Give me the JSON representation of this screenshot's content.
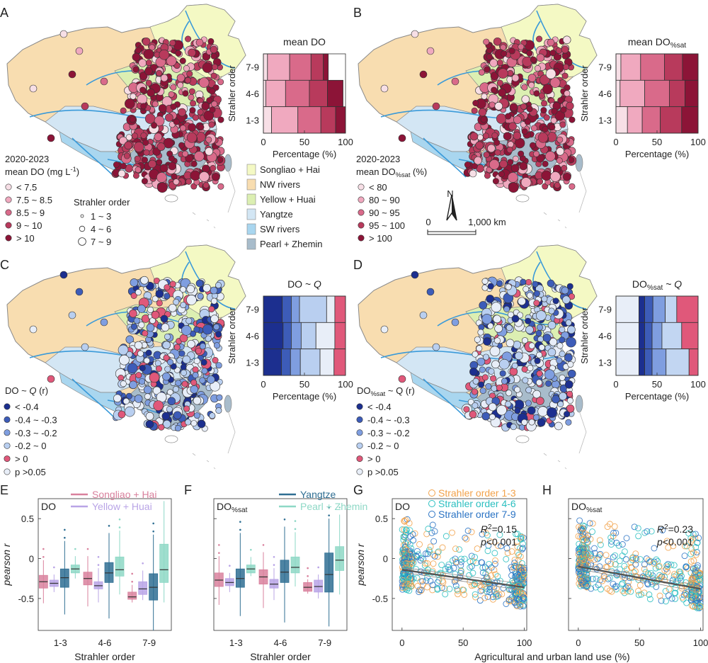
{
  "panel_letters": [
    "A",
    "B",
    "C",
    "D",
    "E",
    "F",
    "G",
    "H"
  ],
  "colors": {
    "do_levels": [
      "#f7dfe6",
      "#f0a9bf",
      "#d96a8a",
      "#b83a5c",
      "#8c1437"
    ],
    "corr_levels": [
      "#1c2f8f",
      "#3d5cb8",
      "#7f9ee0",
      "#b9cff0",
      "#e0587a",
      "#e8eef8"
    ],
    "basins": [
      "#f4f9c4",
      "#f8ddb0",
      "#dcefb2",
      "#d3e6f4",
      "#a9d6ef",
      "#a8bccb"
    ],
    "river": "#3a9ad9",
    "box_colors": [
      "#d9819d",
      "#b9a4e6",
      "#2f6f93",
      "#8ed8c6"
    ],
    "scatter_colors": [
      "#f2a24a",
      "#2bbfc0",
      "#2a73c4"
    ],
    "fit_line": "#555555"
  },
  "map_labels": {
    "scale_zero": "0",
    "scale_text": "1,000 km",
    "north": "N"
  },
  "legends": {
    "A": {
      "title_line1": "2020-2023",
      "title_line2": "mean DO (mg L",
      "title_sup": "-1",
      "title_end": ")",
      "items": [
        "< 7.5",
        "7.5 ~ 8.5",
        "8.5 ~ 9",
        "9 ~ 10",
        "> 10"
      ]
    },
    "strahler": {
      "title": "Strahler order",
      "items": [
        "1 ~ 3",
        "4 ~ 6",
        "7 ~ 9"
      ]
    },
    "basins": [
      "Songliao + Hai",
      "NW rivers",
      "Yellow + Huai",
      "Yangtze",
      "SW rivers",
      "Pearl + Zhemin"
    ],
    "B": {
      "title_line1": "2020-2023",
      "title_line2": "mean DO",
      "title_sub": "%sat",
      "title_end": " (%)",
      "items": [
        "< 80",
        "80 ~ 90",
        "90 ~ 95",
        "95 ~ 100",
        "> 100"
      ]
    },
    "C": {
      "title": "DO ~ ",
      "title_q": "Q",
      "title_r": " (r)",
      "items": [
        "< -0.4",
        "-0.4 ~ -0.3",
        "-0.3 ~ -0.2",
        "-0.2 ~ 0",
        "> 0",
        "p >0.05"
      ]
    },
    "D": {
      "title": "DO",
      "title_sub": "%sat",
      "title_q": " ~ Q",
      "title_r": " (r)",
      "items": [
        "< -0.4",
        "-0.4 ~ -0.3",
        "-0.3 ~ -0.2",
        "-0.2 ~ 0",
        "> 0",
        "p >0.05"
      ]
    }
  },
  "stacked": {
    "ylabel": "Strahler order",
    "xlabel": "Percentage (%)",
    "ticks": [
      "0",
      "50",
      "100"
    ],
    "rows": [
      "7-9",
      "4-6",
      "1-3"
    ],
    "A": {
      "title": "mean DO",
      "data": [
        [
          5,
          27,
          26,
          15,
          6
        ],
        [
          3,
          24,
          29,
          22,
          19
        ],
        [
          10,
          32,
          28,
          18,
          12
        ]
      ]
    },
    "B": {
      "title": "mean DO",
      "title_sub": "%sat",
      "data": [
        [
          6,
          24,
          29,
          22,
          19
        ],
        [
          5,
          30,
          30,
          19,
          16
        ],
        [
          14,
          18,
          22,
          26,
          20
        ]
      ]
    },
    "C": {
      "title": "DO ~ ",
      "title_q": "Q",
      "data": [
        [
          23,
          11,
          10,
          33,
          10,
          13
        ],
        [
          24,
          10,
          12,
          18,
          23,
          13
        ],
        [
          22,
          11,
          12,
          24,
          17,
          14
        ]
      ]
    },
    "D": {
      "title": "DO",
      "title_sub": "%sat",
      "title_q": " ~ Q",
      "data": [
        [
          28,
          7,
          10,
          15,
          14,
          26
        ],
        [
          28,
          7,
          9,
          12,
          24,
          20
        ],
        [
          28,
          7,
          9,
          17,
          28,
          11
        ]
      ]
    }
  },
  "chart_data": [
    {
      "type": "box",
      "panel": "E",
      "title": "DO",
      "xlabel": "Strahler order",
      "ylabel": "pearson r",
      "categories": [
        "1-3",
        "4-6",
        "7-9"
      ],
      "ylim": [
        -0.9,
        0.75
      ],
      "yticks": [
        "0.5",
        "0",
        "-0.5"
      ],
      "legend": [
        "Songliao + Hai",
        "Yellow + Huai"
      ],
      "series": [
        {
          "name": "Songliao + Hai",
          "medians": [
            -0.29,
            -0.25,
            -0.48
          ],
          "q1": [
            -0.37,
            -0.33,
            -0.51
          ],
          "q3": [
            -0.21,
            -0.17,
            -0.42
          ],
          "wlo": [
            -0.56,
            -0.6,
            -0.55
          ],
          "whi": [
            -0.02,
            0.03,
            -0.33
          ]
        },
        {
          "name": "Yellow + Huai",
          "medians": [
            -0.31,
            -0.34,
            -0.38
          ],
          "q1": [
            -0.35,
            -0.38,
            -0.45
          ],
          "q3": [
            -0.27,
            -0.29,
            -0.29
          ],
          "wlo": [
            -0.42,
            -0.55,
            -0.52
          ],
          "whi": [
            -0.2,
            -0.12,
            -0.15
          ]
        },
        {
          "name": "Yangtze",
          "medians": [
            -0.24,
            -0.18,
            -0.36
          ],
          "q1": [
            -0.36,
            -0.3,
            -0.52
          ],
          "q3": [
            -0.13,
            -0.05,
            -0.19
          ],
          "wlo": [
            -0.7,
            -0.75,
            -0.9
          ],
          "whi": [
            0.22,
            0.32,
            0.3
          ]
        },
        {
          "name": "Pearl + Zhemin",
          "medians": [
            -0.13,
            -0.14,
            -0.14
          ],
          "q1": [
            -0.18,
            -0.22,
            -0.3
          ],
          "q3": [
            -0.08,
            0.02,
            0.18
          ],
          "wlo": [
            -0.25,
            -0.45,
            -0.55
          ],
          "whi": [
            0.03,
            0.35,
            0.72
          ]
        }
      ]
    },
    {
      "type": "box",
      "panel": "F",
      "title": "DO",
      "title_sub": "%sat",
      "xlabel": "Strahler order",
      "categories": [
        "1-3",
        "4-6",
        "7-9"
      ],
      "ylim": [
        -0.9,
        0.75
      ],
      "legend": [
        "Yangtze",
        "Pearl + Zhemin"
      ],
      "series": [
        {
          "name": "Songliao + Hai",
          "medians": [
            -0.27,
            -0.23,
            -0.36
          ],
          "q1": [
            -0.35,
            -0.32,
            -0.41
          ],
          "q3": [
            -0.18,
            -0.14,
            -0.3
          ],
          "wlo": [
            -0.58,
            -0.62,
            -0.44
          ],
          "whi": [
            0.03,
            0.08,
            -0.26
          ]
        },
        {
          "name": "Yellow + Huai",
          "medians": [
            -0.3,
            -0.32,
            -0.35
          ],
          "q1": [
            -0.34,
            -0.37,
            -0.42
          ],
          "q3": [
            -0.25,
            -0.26,
            -0.27
          ],
          "wlo": [
            -0.42,
            -0.52,
            -0.5
          ],
          "whi": [
            -0.18,
            -0.12,
            -0.2
          ]
        },
        {
          "name": "Yangtze",
          "medians": [
            -0.25,
            -0.17,
            -0.2
          ],
          "q1": [
            -0.36,
            -0.3,
            -0.42
          ],
          "q3": [
            -0.13,
            -0.02,
            0.07
          ],
          "wlo": [
            -0.72,
            -0.8,
            -0.85
          ],
          "whi": [
            0.32,
            0.4,
            0.5
          ]
        },
        {
          "name": "Pearl + Zhemin",
          "medians": [
            -0.13,
            -0.11,
            -0.02
          ],
          "q1": [
            -0.18,
            -0.18,
            -0.15
          ],
          "q3": [
            -0.08,
            0.02,
            0.15
          ],
          "wlo": [
            -0.22,
            -0.35,
            -0.45
          ],
          "whi": [
            0.02,
            0.33,
            0.55
          ]
        }
      ]
    },
    {
      "type": "scatter",
      "panel": "G",
      "title": "DO",
      "xlabel": "Agricultural and urban land use (%)",
      "ylabel": "pearson r",
      "xlim": [
        -8,
        102
      ],
      "ylim": [
        -0.9,
        0.75
      ],
      "xticks": [
        "0",
        "50",
        "100"
      ],
      "yticks": [
        "0.5",
        "0",
        "-0.5"
      ],
      "legend": [
        "Strahler order 1-3",
        "Strahler order 4-6",
        "Strahler order 7-9"
      ],
      "fit": {
        "x": [
          0,
          100
        ],
        "y": [
          -0.14,
          -0.36
        ]
      },
      "r2_label": "R",
      "r2_value": "=0.15",
      "p_label": "p",
      "p_value": "<0.001"
    },
    {
      "type": "scatter",
      "panel": "H",
      "title": "DO",
      "title_sub": "%sat",
      "xlim": [
        -8,
        102
      ],
      "ylim": [
        -0.9,
        0.75
      ],
      "xticks": [
        "0",
        "50",
        "100"
      ],
      "fit": {
        "x": [
          0,
          100
        ],
        "y": [
          -0.1,
          -0.38
        ]
      },
      "r2_label": "R",
      "r2_value": "=0.23",
      "p_label": "p",
      "p_value": "<0.001"
    }
  ]
}
